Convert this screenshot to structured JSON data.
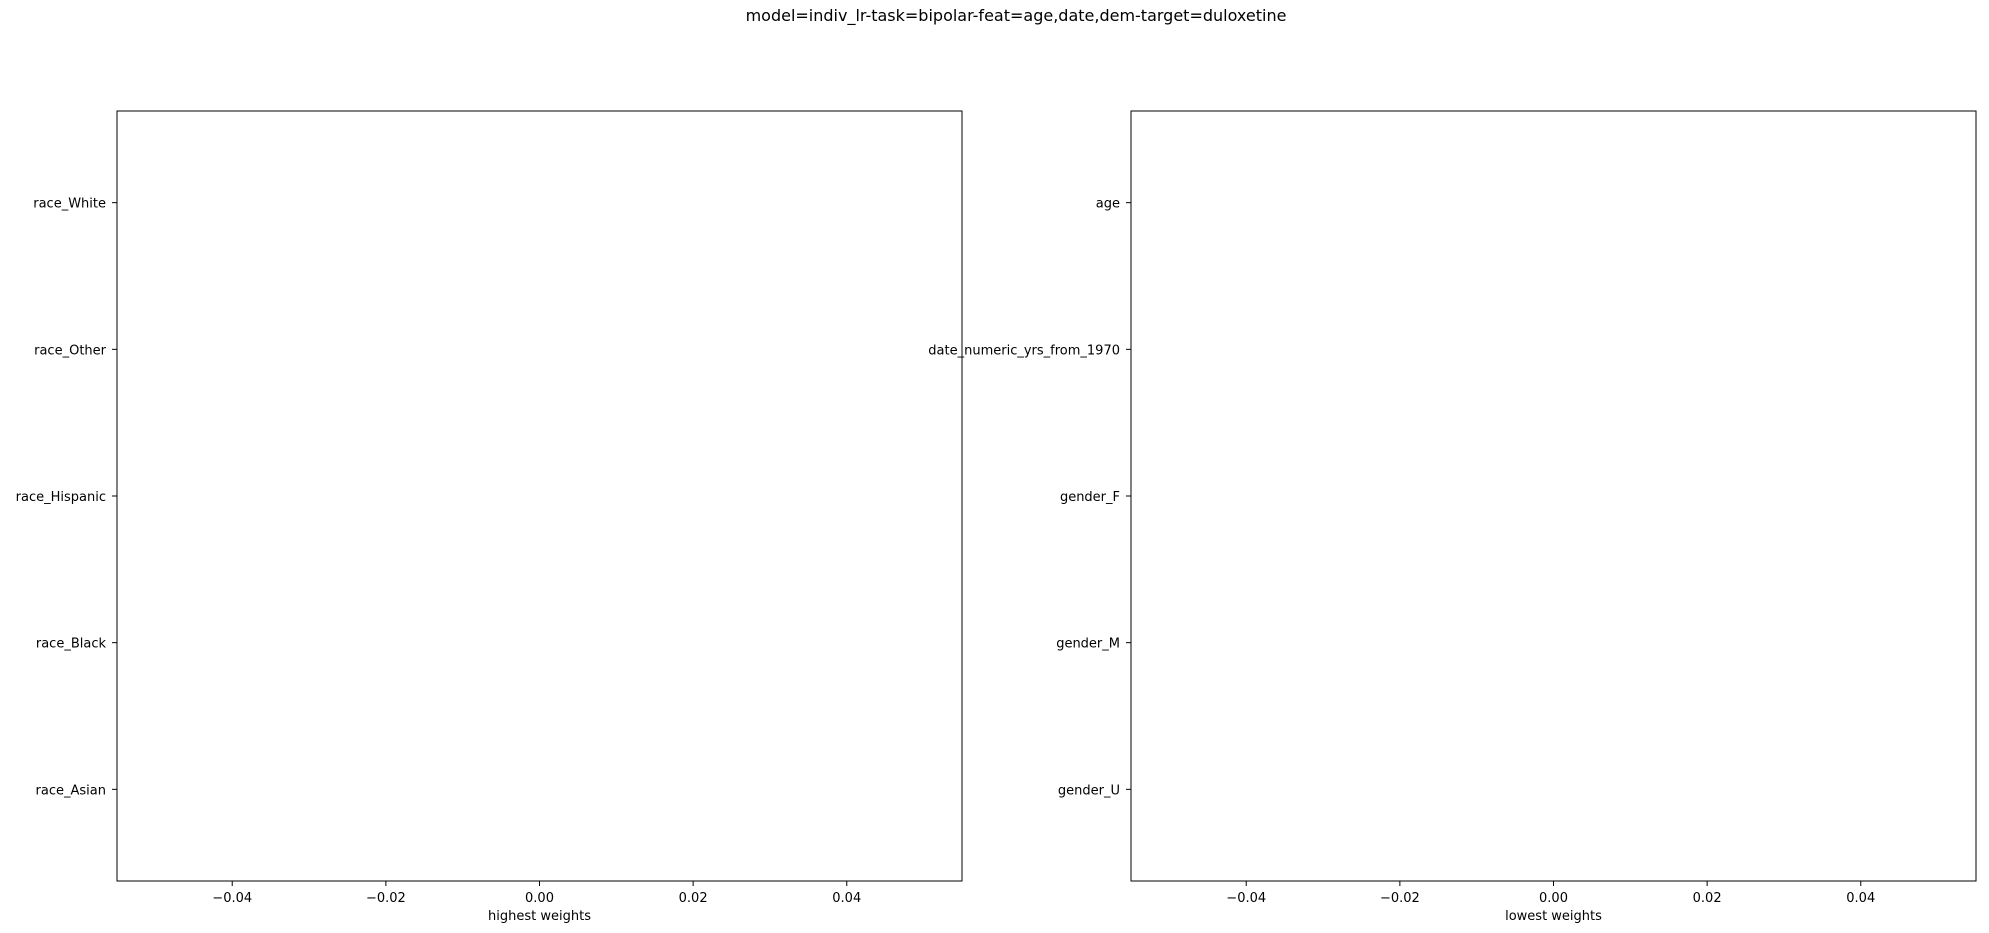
{
  "figure": {
    "suptitle": "model=indiv_lr-task=bipolar-feat=age,date,dem-target=duloxetine"
  },
  "chart_data": [
    {
      "type": "bar",
      "orientation": "horizontal",
      "title": "",
      "xlabel": "highest weights",
      "ylabel": "",
      "categories": [
        "race_White",
        "race_Other",
        "race_Hispanic",
        "race_Black",
        "race_Asian"
      ],
      "values": [
        0,
        0,
        0,
        0,
        0
      ],
      "xlim": [
        -0.055,
        0.055
      ],
      "xticks": [
        -0.04,
        -0.02,
        0.0,
        0.02,
        0.04
      ],
      "xtick_labels": [
        "−0.04",
        "−0.02",
        "0.00",
        "0.02",
        "0.04"
      ],
      "grid": false,
      "legend": "none"
    },
    {
      "type": "bar",
      "orientation": "horizontal",
      "title": "",
      "xlabel": "lowest weights",
      "ylabel": "",
      "categories": [
        "age",
        "date_numeric_yrs_from_1970",
        "gender_F",
        "gender_M",
        "gender_U"
      ],
      "values": [
        0,
        0,
        0,
        0,
        0
      ],
      "xlim": [
        -0.055,
        0.055
      ],
      "xticks": [
        -0.04,
        -0.02,
        0.0,
        0.02,
        0.04
      ],
      "xtick_labels": [
        "−0.04",
        "−0.02",
        "0.00",
        "0.02",
        "0.04"
      ],
      "grid": false,
      "legend": "none"
    }
  ]
}
